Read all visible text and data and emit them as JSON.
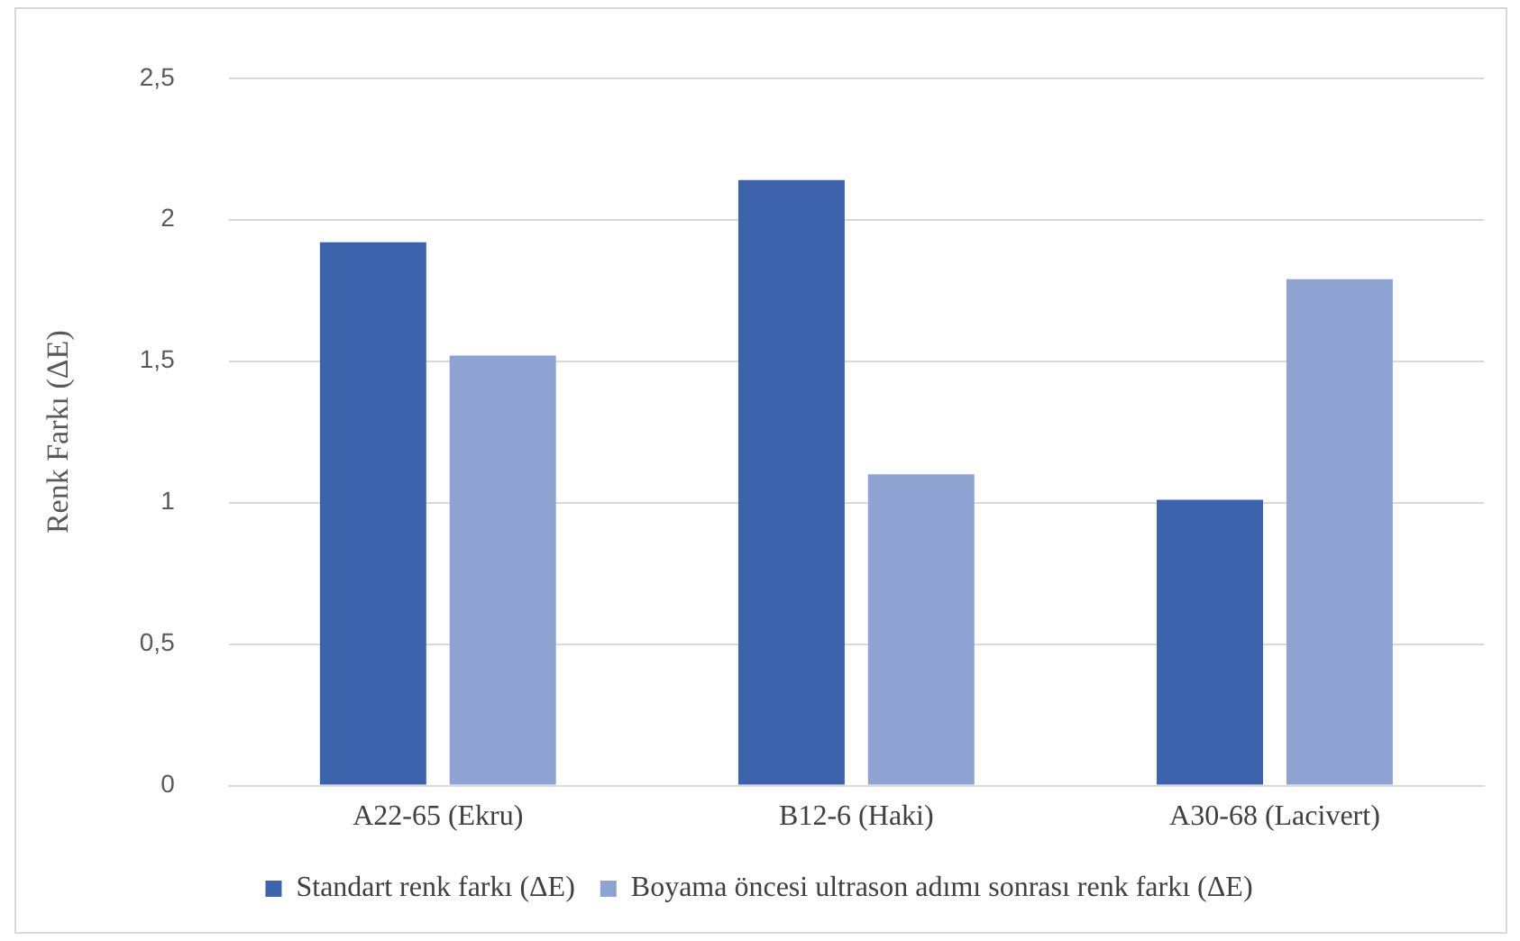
{
  "chart_data": {
    "type": "bar",
    "ylabel": "Renk Farkı (ΔE)",
    "categories": [
      "A22-65 (Ekru)",
      "B12-6 (Haki)",
      "A30-68 (Lacivert)"
    ],
    "series": [
      {
        "name": "Standart renk farkı (ΔE)",
        "color": "#3c63ab",
        "values": [
          1.92,
          2.14,
          1.01
        ]
      },
      {
        "name": "Boyama öncesi ultrason adımı sonrası renk farkı (ΔE)",
        "color": "#8fa3d3",
        "values": [
          1.52,
          1.1,
          1.79
        ]
      }
    ],
    "ylim": [
      0,
      2.5
    ],
    "yticks": [
      0,
      {
        "value": 0.5,
        "label": "0,5"
      },
      1,
      {
        "value": 1.5,
        "label": "1,5"
      },
      2,
      {
        "value": 2.5,
        "label": "2,5"
      }
    ],
    "grid": "y",
    "legend": "bottom"
  }
}
